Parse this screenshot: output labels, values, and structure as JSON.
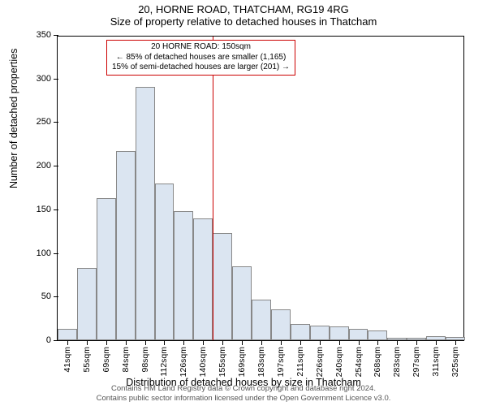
{
  "header": {
    "line1": "20, HORNE ROAD, THATCHAM, RG19 4RG",
    "line2": "Size of property relative to detached houses in Thatcham"
  },
  "chart": {
    "type": "histogram",
    "ylim": [
      0,
      350
    ],
    "ytick_step": 50,
    "yticks": [
      0,
      50,
      100,
      150,
      200,
      250,
      300,
      350
    ],
    "xlabels": [
      "41sqm",
      "55sqm",
      "69sqm",
      "84sqm",
      "98sqm",
      "112sqm",
      "126sqm",
      "140sqm",
      "155sqm",
      "169sqm",
      "183sqm",
      "197sqm",
      "211sqm",
      "226sqm",
      "240sqm",
      "254sqm",
      "268sqm",
      "283sqm",
      "297sqm",
      "311sqm",
      "325sqm"
    ],
    "values": [
      13,
      83,
      163,
      217,
      290,
      180,
      148,
      140,
      123,
      85,
      47,
      35,
      19,
      17,
      16,
      13,
      11,
      3,
      3,
      5,
      4
    ],
    "bar_color": "#dbe5f1",
    "bar_border": "#888888",
    "background_color": "#ffffff",
    "plot_border_color": "#000000",
    "reference_line": {
      "x_index": 8,
      "color": "#cc0000"
    },
    "annotation": {
      "lines": [
        "20 HORNE ROAD: 150sqm",
        "← 85% of detached houses are smaller (1,165)",
        "15% of semi-detached houses are larger (201) →"
      ],
      "border_color": "#cc0000",
      "text_color": "#000000",
      "fontsize": 10
    },
    "ylabel": "Number of detached properties",
    "xlabel": "Distribution of detached houses by size in Thatcham",
    "label_fontsize": 12.5,
    "tick_fontsize": 11
  },
  "footer": {
    "line1": "Contains HM Land Registry data © Crown copyright and database right 2024.",
    "line2": "Contains public sector information licensed under the Open Government Licence v3.0."
  }
}
